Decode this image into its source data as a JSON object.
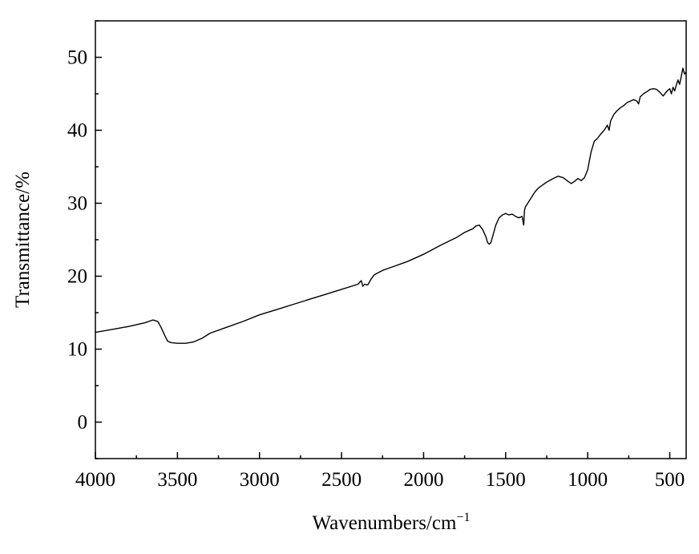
{
  "chart_data": {
    "type": "line",
    "title": "",
    "xlabel": "Wavenumbers/cm",
    "xlabel_superscript": "−1",
    "ylabel": "Transmittance/%",
    "xlim": [
      4000,
      400
    ],
    "ylim": [
      -5,
      55
    ],
    "x_reversed": true,
    "grid": false,
    "x_ticks": [
      4000,
      3500,
      3000,
      2500,
      2000,
      1500,
      1000,
      500
    ],
    "y_ticks": [
      0,
      10,
      20,
      30,
      40,
      50
    ],
    "x_tick_labels": [
      "4000",
      "3500",
      "3000",
      "2500",
      "2000",
      "1500",
      "1000",
      "500"
    ],
    "y_tick_labels": [
      "0",
      "10",
      "20",
      "30",
      "40",
      "50"
    ],
    "series": [
      {
        "color": "#000000",
        "points": [
          [
            4000,
            12.3
          ],
          [
            3900,
            12.7
          ],
          [
            3800,
            13.1
          ],
          [
            3700,
            13.6
          ],
          [
            3650,
            14.0
          ],
          [
            3620,
            13.8
          ],
          [
            3600,
            13.0
          ],
          [
            3580,
            12.0
          ],
          [
            3560,
            11.1
          ],
          [
            3540,
            10.9
          ],
          [
            3500,
            10.8
          ],
          [
            3450,
            10.8
          ],
          [
            3400,
            11.0
          ],
          [
            3350,
            11.5
          ],
          [
            3300,
            12.2
          ],
          [
            3200,
            13.0
          ],
          [
            3100,
            13.8
          ],
          [
            3000,
            14.7
          ],
          [
            2900,
            15.4
          ],
          [
            2800,
            16.1
          ],
          [
            2700,
            16.8
          ],
          [
            2600,
            17.5
          ],
          [
            2500,
            18.2
          ],
          [
            2400,
            18.9
          ],
          [
            2380,
            19.4
          ],
          [
            2370,
            18.6
          ],
          [
            2360,
            18.9
          ],
          [
            2340,
            18.8
          ],
          [
            2320,
            19.6
          ],
          [
            2300,
            20.2
          ],
          [
            2250,
            20.8
          ],
          [
            2200,
            21.2
          ],
          [
            2100,
            22.0
          ],
          [
            2000,
            23.0
          ],
          [
            1900,
            24.2
          ],
          [
            1800,
            25.3
          ],
          [
            1750,
            26.0
          ],
          [
            1700,
            26.5
          ],
          [
            1680,
            26.9
          ],
          [
            1660,
            27.0
          ],
          [
            1640,
            26.4
          ],
          [
            1620,
            25.4
          ],
          [
            1610,
            24.6
          ],
          [
            1600,
            24.4
          ],
          [
            1590,
            24.6
          ],
          [
            1575,
            25.8
          ],
          [
            1560,
            27.0
          ],
          [
            1540,
            28.0
          ],
          [
            1520,
            28.4
          ],
          [
            1500,
            28.6
          ],
          [
            1480,
            28.4
          ],
          [
            1460,
            28.5
          ],
          [
            1440,
            28.2
          ],
          [
            1420,
            28.0
          ],
          [
            1400,
            28.2
          ],
          [
            1390,
            27.0
          ],
          [
            1385,
            29.0
          ],
          [
            1380,
            29.5
          ],
          [
            1360,
            30.2
          ],
          [
            1340,
            30.9
          ],
          [
            1320,
            31.6
          ],
          [
            1300,
            32.1
          ],
          [
            1250,
            32.9
          ],
          [
            1200,
            33.5
          ],
          [
            1180,
            33.7
          ],
          [
            1150,
            33.5
          ],
          [
            1120,
            33.0
          ],
          [
            1100,
            32.7
          ],
          [
            1080,
            33.0
          ],
          [
            1060,
            33.4
          ],
          [
            1040,
            33.1
          ],
          [
            1020,
            33.5
          ],
          [
            1000,
            34.6
          ],
          [
            980,
            37.0
          ],
          [
            960,
            38.5
          ],
          [
            940,
            38.9
          ],
          [
            920,
            39.5
          ],
          [
            900,
            40.0
          ],
          [
            880,
            40.7
          ],
          [
            870,
            40.0
          ],
          [
            860,
            41.3
          ],
          [
            840,
            42.2
          ],
          [
            820,
            42.7
          ],
          [
            800,
            43.1
          ],
          [
            780,
            43.4
          ],
          [
            760,
            43.8
          ],
          [
            740,
            44.0
          ],
          [
            720,
            44.2
          ],
          [
            700,
            44.0
          ],
          [
            690,
            43.6
          ],
          [
            680,
            44.6
          ],
          [
            660,
            45.0
          ],
          [
            640,
            45.3
          ],
          [
            620,
            45.6
          ],
          [
            600,
            45.7
          ],
          [
            580,
            45.6
          ],
          [
            560,
            45.2
          ],
          [
            540,
            44.7
          ],
          [
            520,
            45.3
          ],
          [
            500,
            45.7
          ],
          [
            490,
            45.0
          ],
          [
            480,
            45.9
          ],
          [
            470,
            45.4
          ],
          [
            460,
            46.2
          ],
          [
            450,
            46.9
          ],
          [
            440,
            46.3
          ],
          [
            430,
            47.4
          ],
          [
            420,
            48.5
          ],
          [
            410,
            47.7
          ],
          [
            400,
            48.0
          ]
        ]
      }
    ]
  }
}
